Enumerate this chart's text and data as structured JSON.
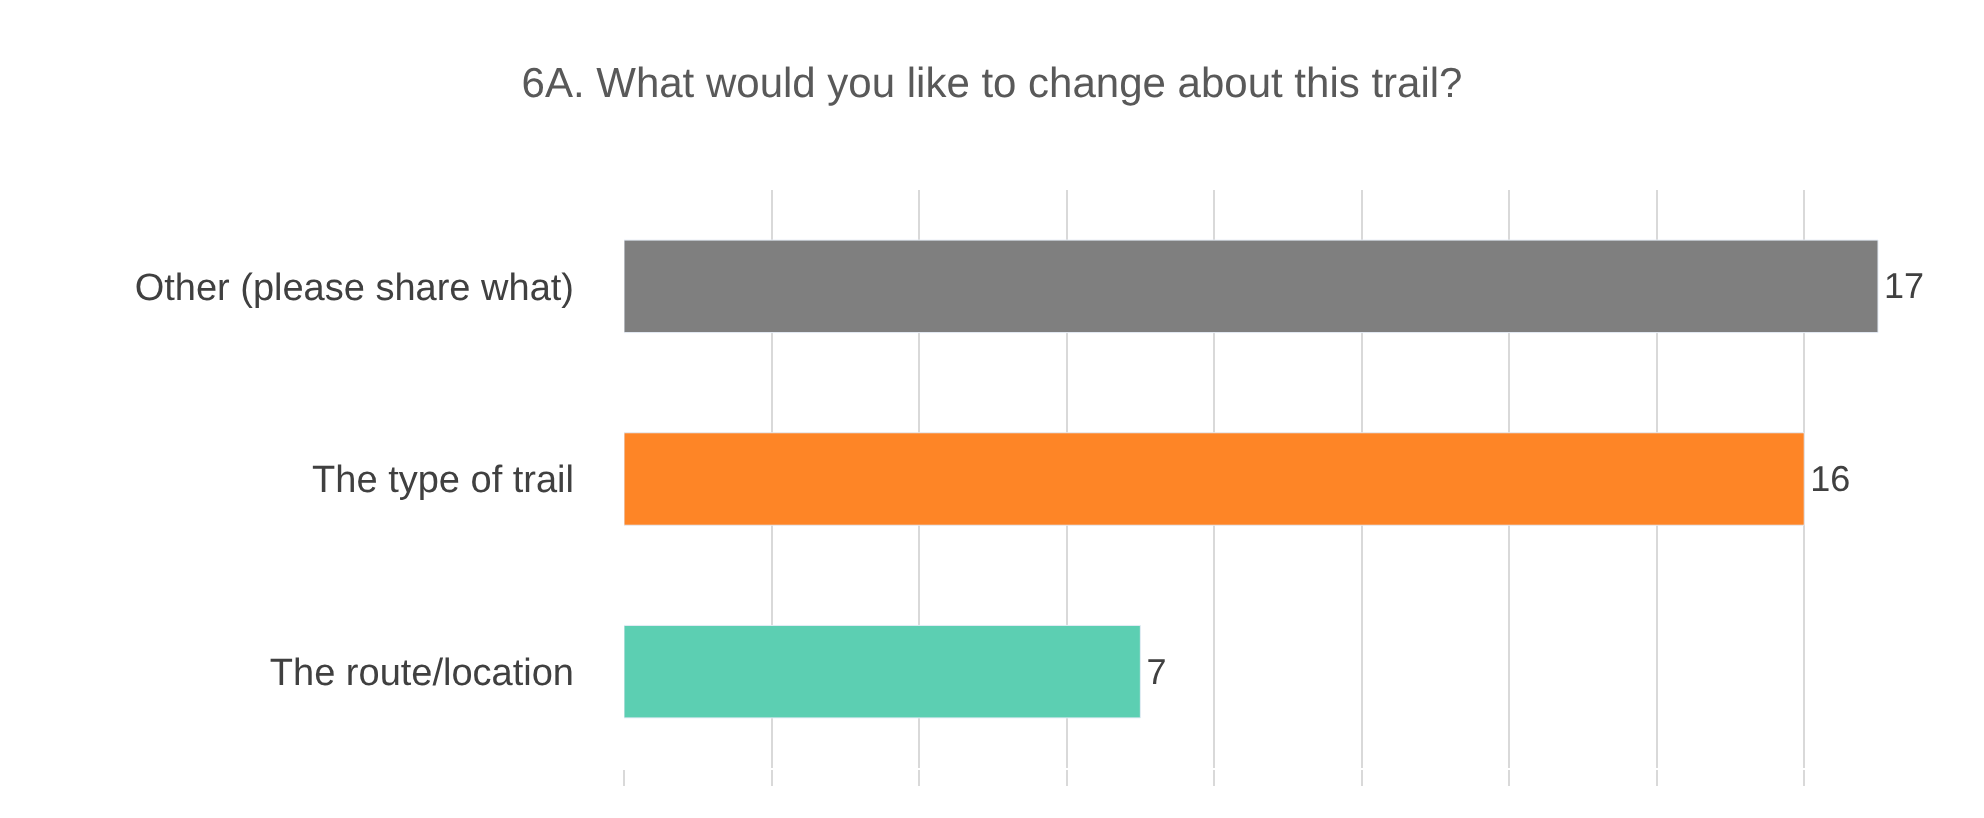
{
  "chart_data": {
    "type": "bar",
    "orientation": "horizontal",
    "title": "6A. What would you like to change about this trail?",
    "categories": [
      "Other (please share what)",
      "The type of trail",
      "The route/location"
    ],
    "values": [
      17,
      16,
      7
    ],
    "colors": [
      "#7f7f7f",
      "#fe8526",
      "#5ccfb2"
    ],
    "tick_labels": "y",
    "grid": "x",
    "data_labels": true
  }
}
